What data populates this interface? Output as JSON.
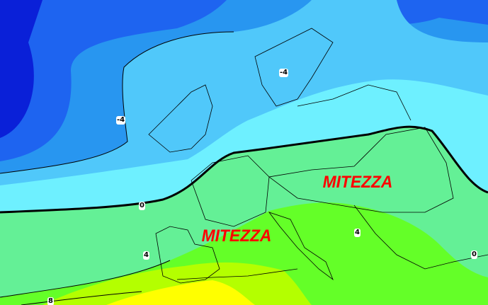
{
  "map": {
    "annotations": [
      "MITEZZA",
      "MITEZZA"
    ],
    "contour_labels": [
      "-4",
      "-4",
      "0",
      "0",
      "4",
      "4",
      "8"
    ],
    "colors": {
      "deep_blue": "#0a20d8",
      "blue": "#1e64f0",
      "medium_blue": "#2896f0",
      "light_blue": "#50c8fa",
      "cyan": "#6ef0ff",
      "light_green": "#64f096",
      "green": "#64ff28",
      "yellow_green": "#b4ff00",
      "yellow": "#ffff00",
      "annotation": "#ff0000",
      "zero_isoline": "#000000"
    }
  }
}
